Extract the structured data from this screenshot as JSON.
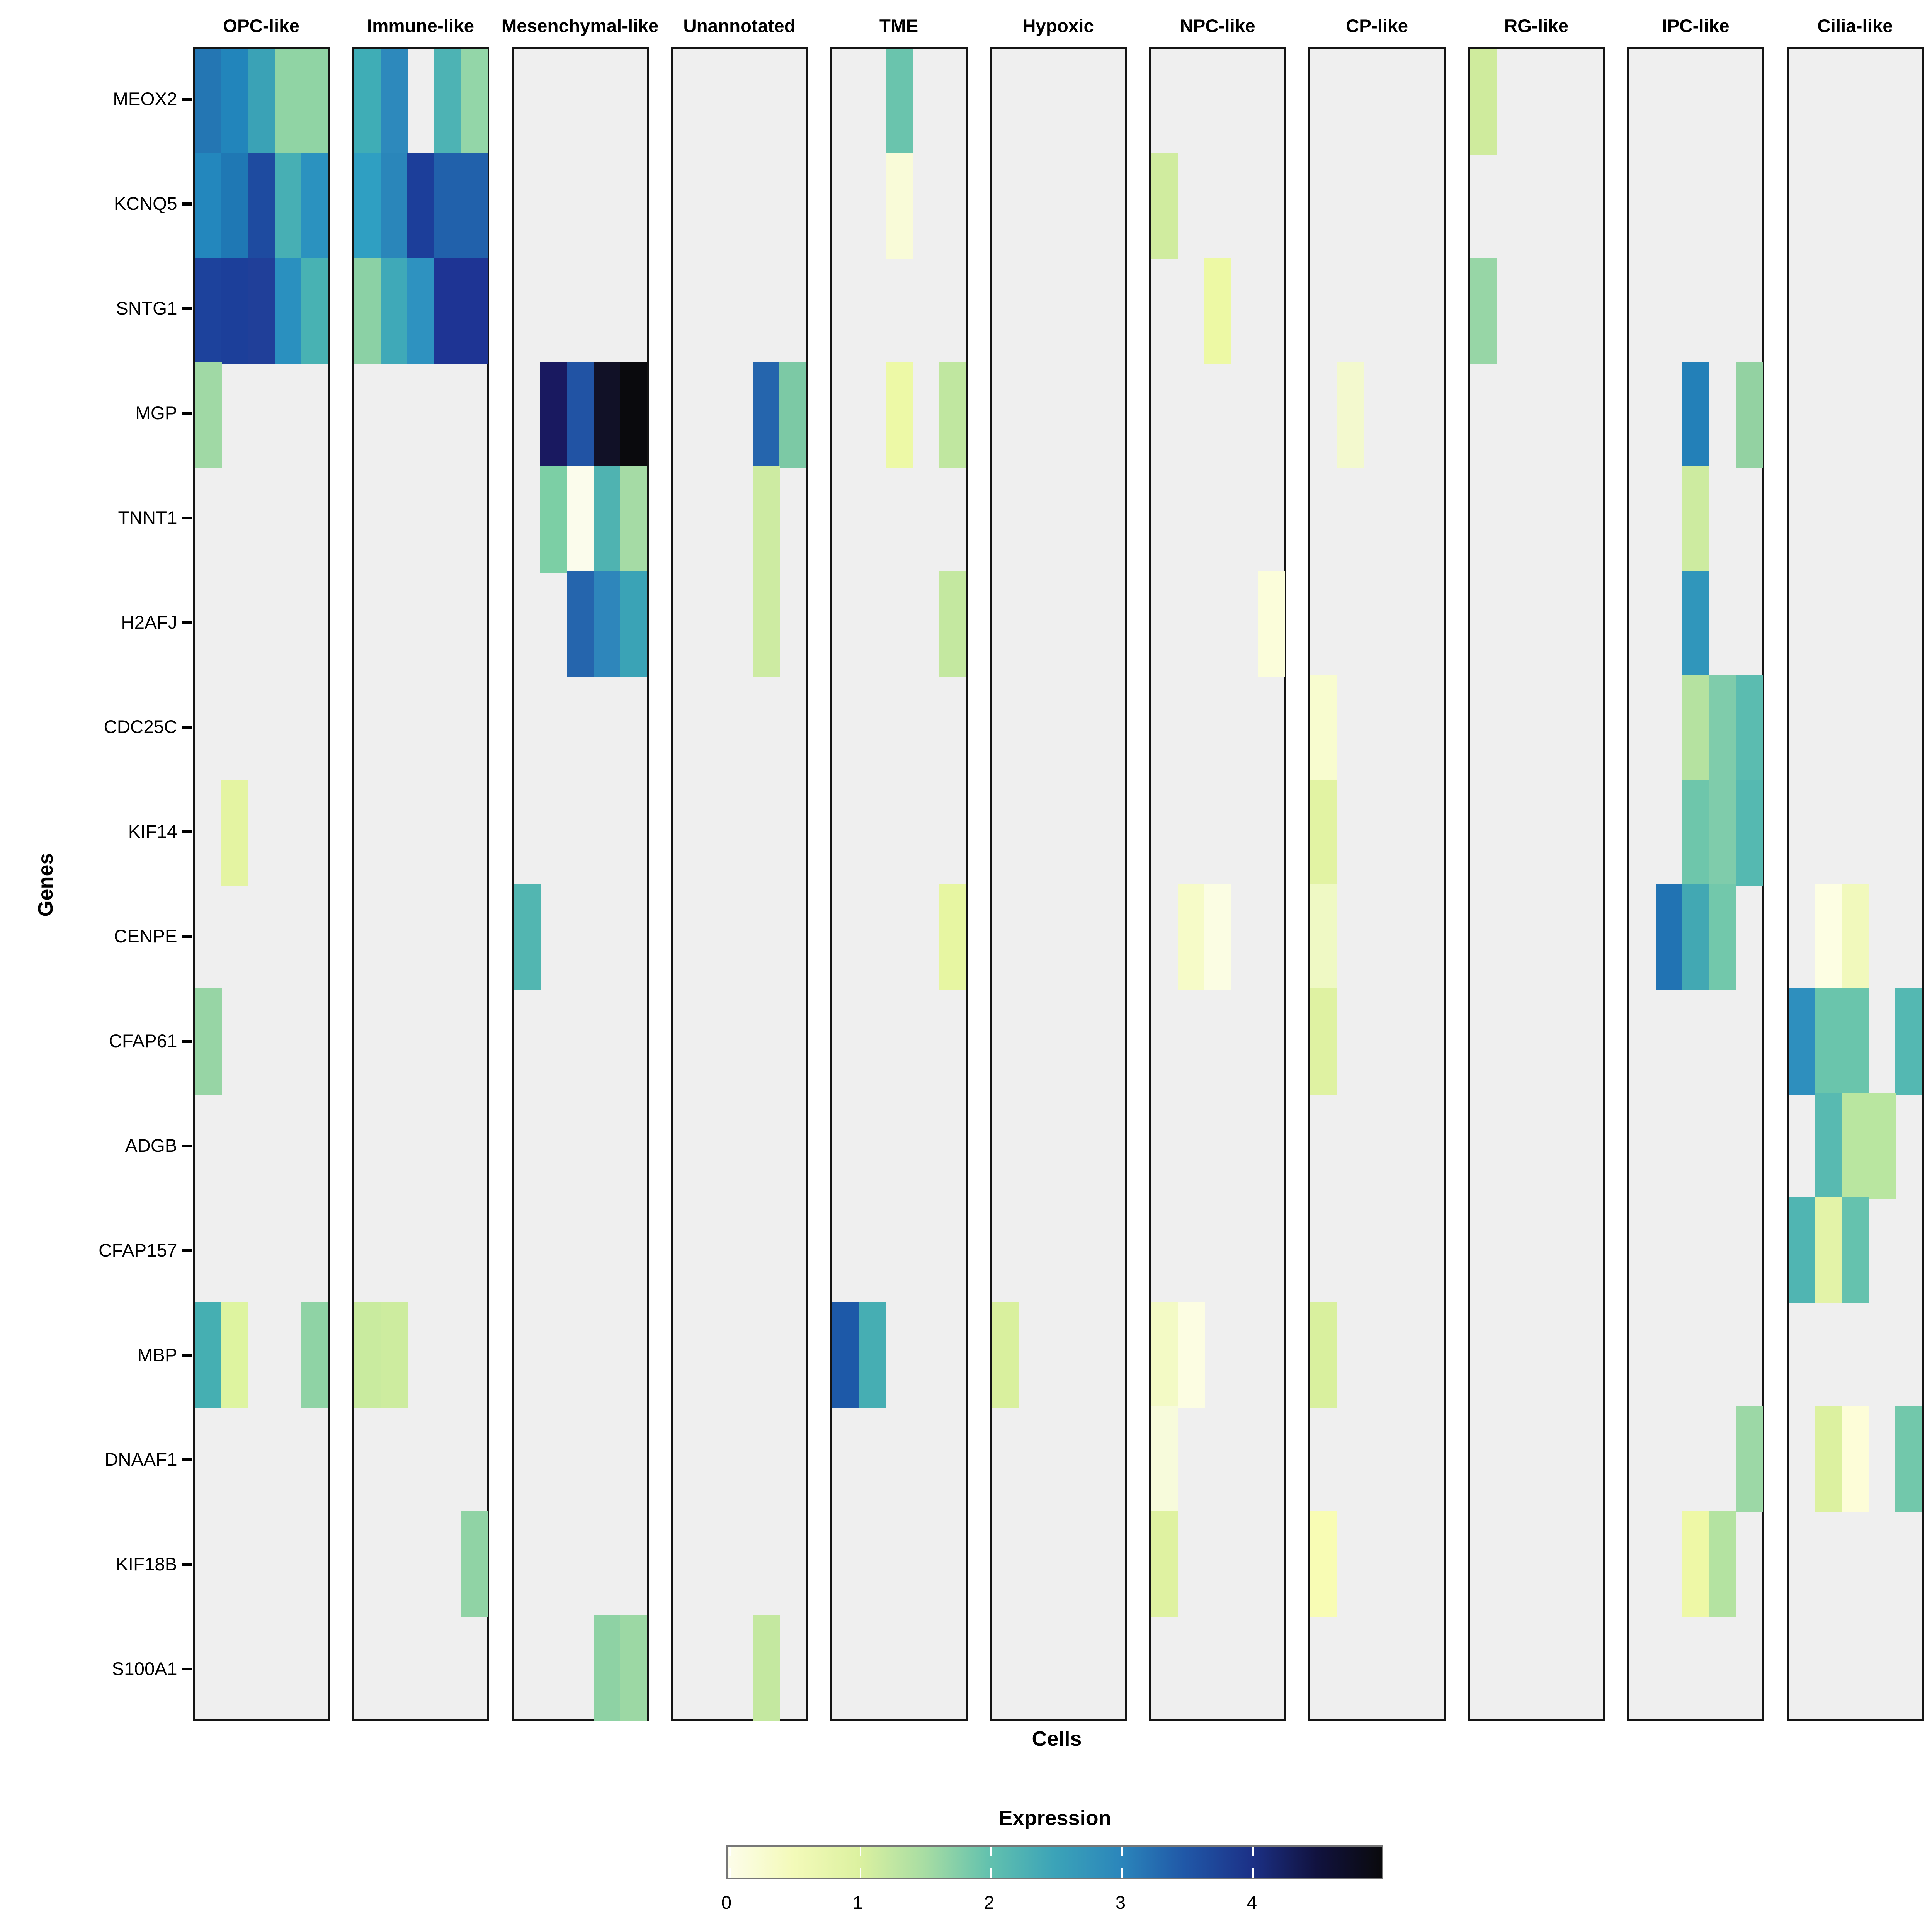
{
  "chart_data": {
    "type": "heatmap",
    "title": "",
    "xlabel": "Cells",
    "ylabel": "Genes",
    "panel_background": "#efefef",
    "legend": {
      "title": "Expression",
      "range": [
        0,
        5
      ],
      "ticks": [
        "0",
        "1",
        "2",
        "3",
        "4"
      ],
      "tick_values": [
        0,
        1,
        2,
        3,
        4
      ],
      "gradient_stops": [
        "#fdfdea",
        "#f3fab9",
        "#dcf1a0",
        "#a8dda3",
        "#62c1ae",
        "#3ba3b8",
        "#2b86bb",
        "#2057a7",
        "#1c3187",
        "#11123f",
        "#0a0a0d"
      ]
    },
    "genes": [
      "MEOX2",
      "KCNQ5",
      "SNTG1",
      "MGP",
      "TNNT1",
      "H2AFJ",
      "CDC25C",
      "KIF14",
      "CENPE",
      "CFAP61",
      "ADGB",
      "CFAP157",
      "MBP",
      "DNAAF1",
      "KIF18B",
      "S100A1"
    ],
    "columns_per_facet": 5,
    "facets": [
      {
        "name": "OPC-like",
        "cells": [
          [
            "MEOX2",
            1,
            "#2476b3",
            3.1
          ],
          [
            "MEOX2",
            2,
            "#2285bb",
            3.0
          ],
          [
            "MEOX2",
            3,
            "#3aa2b6",
            2.5
          ],
          [
            "MEOX2",
            4,
            "#90d4a4",
            1.6
          ],
          [
            "MEOX2",
            5,
            "#90d4a4",
            1.6
          ],
          [
            "KCNQ5",
            1,
            "#2387bd",
            2.9
          ],
          [
            "KCNQ5",
            2,
            "#1f78b4",
            3.1
          ],
          [
            "KCNQ5",
            3,
            "#1e4ba0",
            3.7
          ],
          [
            "KCNQ5",
            4,
            "#47afb4",
            2.3
          ],
          [
            "KCNQ5",
            5,
            "#2b92bf",
            2.8
          ],
          [
            "SNTG1",
            1,
            "#1d429c",
            3.8
          ],
          [
            "SNTG1",
            2,
            "#1c3f9a",
            3.9
          ],
          [
            "SNTG1",
            3,
            "#203f99",
            3.9
          ],
          [
            "SNTG1",
            4,
            "#2a90bf",
            2.8
          ],
          [
            "SNTG1",
            5,
            "#48b2b3",
            2.3
          ],
          [
            "MGP",
            1,
            "#a0d9a5",
            1.5
          ],
          [
            "KIF14",
            2,
            "#e4f4a2",
            0.9
          ],
          [
            "CFAP61",
            1,
            "#97d5a5",
            1.6
          ],
          [
            "MBP",
            1,
            "#45afb2",
            2.3
          ],
          [
            "MBP",
            2,
            "#def4a0",
            1.0
          ],
          [
            "MBP",
            5,
            "#8fd3a5",
            1.6
          ]
        ]
      },
      {
        "name": "Immune-like",
        "cells": [
          [
            "MEOX2",
            1,
            "#3fadb6",
            2.4
          ],
          [
            "MEOX2",
            2,
            "#2d89bc",
            2.9
          ],
          [
            "MEOX2",
            4,
            "#4db3b4",
            2.2
          ],
          [
            "MEOX2",
            5,
            "#93d6a8",
            1.6
          ],
          [
            "KCNQ5",
            1,
            "#2f9fc2",
            2.6
          ],
          [
            "KCNQ5",
            2,
            "#2a86ba",
            2.9
          ],
          [
            "KCNQ5",
            3,
            "#1c3e9a",
            3.9
          ],
          [
            "KCNQ5",
            4,
            "#2161ab",
            3.4
          ],
          [
            "KCNQ5",
            5,
            "#2161ab",
            3.4
          ],
          [
            "SNTG1",
            1,
            "#8bd1a5",
            1.7
          ],
          [
            "SNTG1",
            2,
            "#3fa9b8",
            2.4
          ],
          [
            "SNTG1",
            3,
            "#2e92c0",
            2.8
          ],
          [
            "SNTG1",
            4,
            "#1e3494",
            4.0
          ],
          [
            "SNTG1",
            5,
            "#1e3494",
            4.0
          ],
          [
            "MBP",
            1,
            "#c9eb9f",
            1.1
          ],
          [
            "MBP",
            2,
            "#cdec9f",
            1.05
          ],
          [
            "KIF18B",
            5,
            "#90d3a5",
            1.6
          ]
        ]
      },
      {
        "name": "Mesenchymal-like",
        "cells": [
          [
            "MGP",
            2,
            "#191960",
            4.4
          ],
          [
            "MGP",
            3,
            "#2153a4",
            3.6
          ],
          [
            "MGP",
            4,
            "#111127",
            4.8
          ],
          [
            "MGP",
            5,
            "#0a0a0d",
            5.0
          ],
          [
            "TNNT1",
            2,
            "#7ccfa5",
            1.8
          ],
          [
            "TNNT1",
            3,
            "#fbfcec",
            0.05
          ],
          [
            "TNNT1",
            4,
            "#4fb3b1",
            2.2
          ],
          [
            "TNNT1",
            5,
            "#a5dba5",
            1.45
          ],
          [
            "H2AFJ",
            3,
            "#2565ad",
            3.3
          ],
          [
            "H2AFJ",
            4,
            "#2e86bb",
            2.9
          ],
          [
            "H2AFJ",
            5,
            "#3aa3b6",
            2.5
          ],
          [
            "CENPE",
            1,
            "#52b6b1",
            2.2
          ],
          [
            "S100A1",
            4,
            "#8ed2a4",
            1.6
          ],
          [
            "S100A1",
            5,
            "#9cd8a4",
            1.55
          ]
        ]
      },
      {
        "name": "Unannotated",
        "cells": [
          [
            "MGP",
            4,
            "#2565ad",
            3.3
          ],
          [
            "MGP",
            5,
            "#7cc9a5",
            1.8
          ],
          [
            "TNNT1",
            4,
            "#cdeba2",
            1.1
          ],
          [
            "H2AFJ",
            4,
            "#cdeba2",
            1.1
          ],
          [
            "S100A1",
            4,
            "#c4e8a0",
            1.2
          ]
        ]
      },
      {
        "name": "TME",
        "cells": [
          [
            "MEOX2",
            3,
            "#6ac4ad",
            1.95
          ],
          [
            "KCNQ5",
            3,
            "#f9fbd8",
            0.2
          ],
          [
            "MGP",
            3,
            "#edf9a6",
            0.65
          ],
          [
            "MGP",
            5,
            "#c0e7a0",
            1.25
          ],
          [
            "H2AFJ",
            5,
            "#c4e8a0",
            1.2
          ],
          [
            "CENPE",
            5,
            "#e7f6a2",
            0.85
          ],
          [
            "MBP",
            1,
            "#1d59a8",
            3.55
          ],
          [
            "MBP",
            2,
            "#46aeb3",
            2.3
          ]
        ]
      },
      {
        "name": "Hypoxic",
        "cells": [
          [
            "MBP",
            1,
            "#d9f09e",
            1.0
          ]
        ]
      },
      {
        "name": "NPC-like",
        "cells": [
          [
            "KCNQ5",
            1,
            "#d0ec9f",
            1.1
          ],
          [
            "SNTG1",
            3,
            "#edf9a4",
            0.7
          ],
          [
            "H2AFJ",
            5,
            "#fbfdda",
            0.18
          ],
          [
            "CENPE",
            2,
            "#f6fbc8",
            0.35
          ],
          [
            "CENPE",
            3,
            "#fbfde3",
            0.15
          ],
          [
            "MBP",
            1,
            "#f3fac5",
            0.4
          ],
          [
            "MBP",
            2,
            "#fcfde2",
            0.15
          ],
          [
            "DNAAF1",
            1,
            "#f7fbdb",
            0.25
          ],
          [
            "KIF18B",
            1,
            "#dff2a1",
            0.95
          ]
        ]
      },
      {
        "name": "CP-like",
        "cells": [
          [
            "MGP",
            2,
            "#f3f9ce",
            0.35
          ],
          [
            "CDC25C",
            1,
            "#f8fccf",
            0.3
          ],
          [
            "KIF14",
            1,
            "#e2f3a3",
            0.9
          ],
          [
            "CENPE",
            1,
            "#eff9c4",
            0.5
          ],
          [
            "CFAP61",
            1,
            "#dff2a2",
            0.95
          ],
          [
            "MBP",
            1,
            "#d9f09e",
            1.0
          ],
          [
            "KIF18B",
            1,
            "#f8fcb4",
            0.35
          ]
        ]
      },
      {
        "name": "RG-like",
        "cells": [
          [
            "MEOX2",
            1,
            "#cfeb9d",
            1.1
          ],
          [
            "SNTG1",
            1,
            "#97d6a6",
            1.55
          ]
        ]
      },
      {
        "name": "IPC-like",
        "cells": [
          [
            "MGP",
            3,
            "#2380b8",
            3.0
          ],
          [
            "MGP",
            5,
            "#93d2a2",
            1.6
          ],
          [
            "TNNT1",
            3,
            "#cdeba0",
            1.1
          ],
          [
            "H2AFJ",
            3,
            "#3096bb",
            2.75
          ],
          [
            "CDC25C",
            3,
            "#b5e2a0",
            1.35
          ],
          [
            "CDC25C",
            4,
            "#7fccab",
            1.75
          ],
          [
            "CDC25C",
            5,
            "#5bbcb0",
            2.1
          ],
          [
            "KIF14",
            3,
            "#6ec6ab",
            1.9
          ],
          [
            "KIF14",
            4,
            "#7fccab",
            1.75
          ],
          [
            "KIF14",
            5,
            "#55b9b1",
            2.15
          ],
          [
            "CENPE",
            2,
            "#2173b3",
            3.15
          ],
          [
            "CENPE",
            3,
            "#42a8b3",
            2.35
          ],
          [
            "CENPE",
            4,
            "#72c8ab",
            1.85
          ],
          [
            "KIF18B",
            3,
            "#eef8a6",
            0.65
          ],
          [
            "KIF18B",
            4,
            "#b4e3a1",
            1.35
          ],
          [
            "DNAAF1",
            5,
            "#9cd8a6",
            1.55
          ]
        ]
      },
      {
        "name": "Cilia-like",
        "cells": [
          [
            "CENPE",
            2,
            "#fdfee3",
            0.1
          ],
          [
            "CENPE",
            3,
            "#f1f9bc",
            0.45
          ],
          [
            "CFAP61",
            1,
            "#2e8fbe",
            2.8
          ],
          [
            "CFAP61",
            2,
            "#6ac5ac",
            1.95
          ],
          [
            "CFAP61",
            3,
            "#6ac5ac",
            1.95
          ],
          [
            "CFAP61",
            5,
            "#54b8b2",
            2.15
          ],
          [
            "ADGB",
            2,
            "#58bab1",
            2.1
          ],
          [
            "ADGB",
            3,
            "#b9e6a0",
            1.3
          ],
          [
            "ADGB",
            4,
            "#b9e6a0",
            1.3
          ],
          [
            "CFAP157",
            1,
            "#50b5b2",
            2.2
          ],
          [
            "CFAP157",
            2,
            "#e3f3a8",
            0.8
          ],
          [
            "CFAP157",
            3,
            "#65c2ae",
            2.0
          ],
          [
            "DNAAF1",
            2,
            "#dcf1a0",
            1.0
          ],
          [
            "DNAAF1",
            3,
            "#fdfdd8",
            0.15
          ],
          [
            "DNAAF1",
            5,
            "#72c8ab",
            1.85
          ]
        ]
      }
    ]
  }
}
